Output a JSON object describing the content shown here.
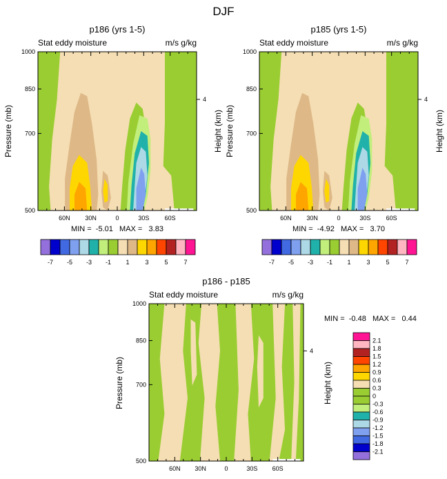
{
  "figure_title": "DJF",
  "colors": {
    "c_m7": "#9370db",
    "c_m6": "#0000cd",
    "c_m5": "#4169e1",
    "c_m4": "#7fa0ef",
    "c_m3": "#add8e6",
    "c_m2": "#20b2aa",
    "c_m1": "#c2ee7c",
    "c_0": "#9acd32",
    "c_p1": "#f5deb3",
    "c_p2": "#deb887",
    "c_p3": "#ffd700",
    "c_p4": "#ffa500",
    "c_p5": "#ff4500",
    "c_p6": "#b22222",
    "c_p7": "#ffb6c1",
    "c_p8": "#ff1493"
  },
  "chart_data": [
    {
      "type": "heatmap",
      "title": "p186 (yrs 1-5)",
      "left_label": "Stat eddy moisture",
      "right_label": "m/s g/kg",
      "ylabel": "Pressure (mb)",
      "ylabel_right": "Height (km)",
      "yticks": [
        "500",
        "700",
        "850",
        "1000"
      ],
      "ytick_values": [
        500,
        700,
        850,
        1000
      ],
      "right_ticks": [
        "4"
      ],
      "xticks": [
        "60N",
        "30N",
        "0",
        "30S",
        "60S"
      ],
      "xtick_values": [
        60,
        30,
        0,
        -30,
        -60
      ],
      "xlim": [
        90,
        -90
      ],
      "ylim": [
        1000,
        500
      ],
      "stats": "MIN =  -5.01   MAX =   3.83",
      "min": -5.01,
      "max": 3.83
    },
    {
      "type": "heatmap",
      "title": "p185 (yrs 1-5)",
      "left_label": "Stat eddy moisture",
      "right_label": "m/s g/kg",
      "ylabel": "Pressure (mb)",
      "ylabel_right": "Height (km)",
      "yticks": [
        "500",
        "700",
        "850",
        "1000"
      ],
      "ytick_values": [
        500,
        700,
        850,
        1000
      ],
      "right_ticks": [
        "4"
      ],
      "xticks": [
        "60N",
        "30N",
        "0",
        "30S",
        "60S"
      ],
      "xtick_values": [
        60,
        30,
        0,
        -30,
        -60
      ],
      "xlim": [
        90,
        -90
      ],
      "ylim": [
        1000,
        500
      ],
      "stats": "MIN =  -4.92   MAX =   3.70",
      "min": -4.92,
      "max": 3.7
    },
    {
      "type": "heatmap",
      "title": "p186 - p185",
      "left_label": "Stat eddy moisture",
      "right_label": "m/s g/kg",
      "ylabel": "Pressure (mb)",
      "ylabel_right": "Height (km)",
      "yticks": [
        "500",
        "700",
        "850",
        "1000"
      ],
      "ytick_values": [
        500,
        700,
        850,
        1000
      ],
      "right_ticks": [
        "4"
      ],
      "xticks": [
        "60N",
        "30N",
        "0",
        "30S",
        "60S"
      ],
      "xtick_values": [
        60,
        30,
        0,
        -30,
        -60
      ],
      "xlim": [
        90,
        -90
      ],
      "ylim": [
        1000,
        500
      ],
      "stats": "MIN =  -0.48   MAX =   0.44",
      "min": -0.48,
      "max": 0.44
    }
  ],
  "colorbar_main": {
    "levels": [
      "-7",
      "-5",
      "-3",
      "-1",
      "1",
      "3",
      "5",
      "7"
    ],
    "colors": [
      "c_m7",
      "c_m6",
      "c_m5",
      "c_m4",
      "c_m3",
      "c_m2",
      "c_m1",
      "c_0",
      "c_p1",
      "c_p2",
      "c_p3",
      "c_p4",
      "c_p5",
      "c_p6",
      "c_p7",
      "c_p8"
    ]
  },
  "colorbar_diff": {
    "levels": [
      "2.1",
      "1.8",
      "1.5",
      "1.2",
      "0.9",
      "0.6",
      "0.3",
      "0",
      "-0.3",
      "-0.6",
      "-0.9",
      "-1.2",
      "-1.5",
      "-1.8",
      "-2.1"
    ],
    "colors": [
      "c_p8",
      "c_p7",
      "c_p6",
      "c_p5",
      "c_p4",
      "c_p3",
      "c_p1",
      "c_0",
      "c_0",
      "c_m1",
      "c_m2",
      "c_m3",
      "c_m4",
      "c_m5",
      "c_m6",
      "c_m7"
    ]
  }
}
